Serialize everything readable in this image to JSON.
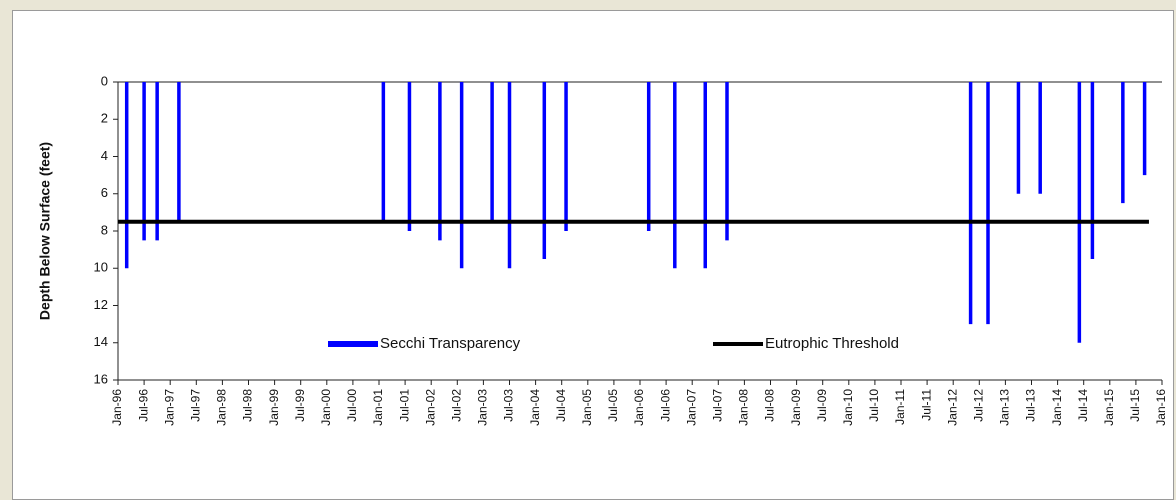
{
  "chart_data": {
    "type": "bar",
    "y_label": "Depth Below Surface (feet)",
    "ylim": [
      0,
      16
    ],
    "y_inverted": true,
    "yticks": [
      0,
      2,
      4,
      6,
      8,
      10,
      12,
      14,
      16
    ],
    "xlim": [
      "1996-01",
      "2016-01"
    ],
    "xticks": [
      {
        "value": "1996-01",
        "label": "Jan-96"
      },
      {
        "value": "1996-07",
        "label": "Jul-96"
      },
      {
        "value": "1997-01",
        "label": "Jan-97"
      },
      {
        "value": "1997-07",
        "label": "Jul-97"
      },
      {
        "value": "1998-01",
        "label": "Jan-98"
      },
      {
        "value": "1998-07",
        "label": "Jul-98"
      },
      {
        "value": "1999-01",
        "label": "Jan-99"
      },
      {
        "value": "1999-07",
        "label": "Jul-99"
      },
      {
        "value": "2000-01",
        "label": "Jan-00"
      },
      {
        "value": "2000-07",
        "label": "Jul-00"
      },
      {
        "value": "2001-01",
        "label": "Jan-01"
      },
      {
        "value": "2001-07",
        "label": "Jul-01"
      },
      {
        "value": "2002-01",
        "label": "Jan-02"
      },
      {
        "value": "2002-07",
        "label": "Jul-02"
      },
      {
        "value": "2003-01",
        "label": "Jan-03"
      },
      {
        "value": "2003-07",
        "label": "Jul-03"
      },
      {
        "value": "2004-01",
        "label": "Jan-04"
      },
      {
        "value": "2004-07",
        "label": "Jul-04"
      },
      {
        "value": "2005-01",
        "label": "Jan-05"
      },
      {
        "value": "2005-07",
        "label": "Jul-05"
      },
      {
        "value": "2006-01",
        "label": "Jan-06"
      },
      {
        "value": "2006-07",
        "label": "Jul-06"
      },
      {
        "value": "2007-01",
        "label": "Jan-07"
      },
      {
        "value": "2007-07",
        "label": "Jul-07"
      },
      {
        "value": "2008-01",
        "label": "Jan-08"
      },
      {
        "value": "2008-07",
        "label": "Jul-08"
      },
      {
        "value": "2009-01",
        "label": "Jan-09"
      },
      {
        "value": "2009-07",
        "label": "Jul-09"
      },
      {
        "value": "2010-01",
        "label": "Jan-10"
      },
      {
        "value": "2010-07",
        "label": "Jul-10"
      },
      {
        "value": "2011-01",
        "label": "Jan-11"
      },
      {
        "value": "2011-07",
        "label": "Jul-11"
      },
      {
        "value": "2012-01",
        "label": "Jan-12"
      },
      {
        "value": "2012-07",
        "label": "Jul-12"
      },
      {
        "value": "2013-01",
        "label": "Jan-13"
      },
      {
        "value": "2013-07",
        "label": "Jul-13"
      },
      {
        "value": "2014-01",
        "label": "Jan-14"
      },
      {
        "value": "2014-07",
        "label": "Jul-14"
      },
      {
        "value": "2015-01",
        "label": "Jan-15"
      },
      {
        "value": "2015-07",
        "label": "Jul-15"
      },
      {
        "value": "2016-01",
        "label": "Jan-16"
      }
    ],
    "legend": "lower center",
    "series": [
      {
        "name": "Secchi Transparency",
        "color": "#0000ff",
        "type": "bar",
        "x": [
          "1996-03",
          "1996-07",
          "1996-10",
          "1997-03",
          "2001-02",
          "2001-08",
          "2002-03",
          "2002-08",
          "2003-03",
          "2003-07",
          "2004-03",
          "2004-08",
          "2006-03",
          "2006-09",
          "2007-04",
          "2007-09",
          "2012-05",
          "2012-09",
          "2013-04",
          "2013-09",
          "2014-06",
          "2014-09",
          "2015-04",
          "2015-09"
        ],
        "values": [
          10,
          8.5,
          8.5,
          7.5,
          7.5,
          8,
          8.5,
          10,
          7.5,
          10,
          9.5,
          8,
          8,
          10,
          10,
          8.5,
          13,
          13,
          6,
          6,
          14,
          9.5,
          6.5,
          5
        ]
      },
      {
        "name": "Eutrophic Threshold",
        "color": "#000000",
        "type": "line",
        "x": [
          "1996-01",
          "2015-10"
        ],
        "values": [
          7.5,
          7.5
        ]
      }
    ]
  }
}
